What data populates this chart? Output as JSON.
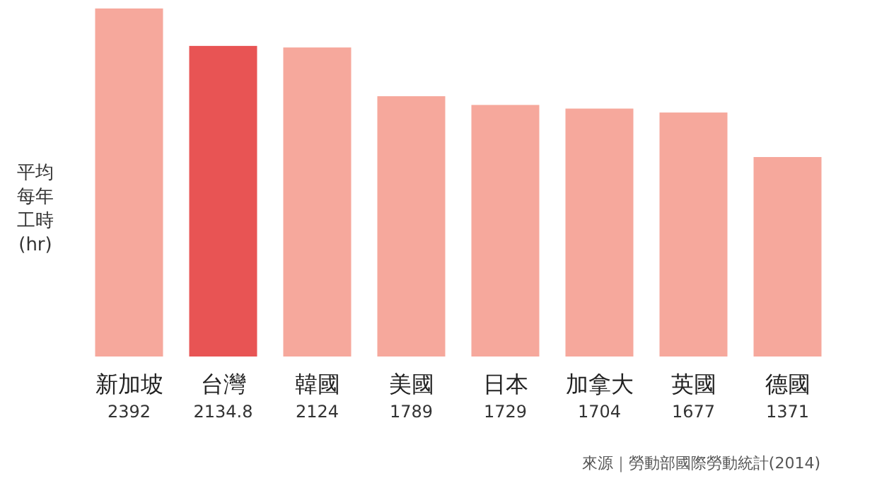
{
  "chart_data": {
    "type": "bar",
    "ylabel": "平均每年工時(hr)",
    "categories": [
      "新加坡",
      "台灣",
      "韓國",
      "美國",
      "日本",
      "加拿大",
      "英國",
      "德國"
    ],
    "values": [
      2392,
      2134.8,
      2124,
      1789,
      1729,
      1704,
      1677,
      1371
    ],
    "colors": [
      "#f6a89c",
      "#e85454",
      "#f6a89c",
      "#f6a89c",
      "#f6a89c",
      "#f6a89c",
      "#f6a89c",
      "#f6a89c"
    ],
    "data_labels": true,
    "annotations": [
      "來源｜勞動部國際勞動統計(2014)"
    ]
  }
}
